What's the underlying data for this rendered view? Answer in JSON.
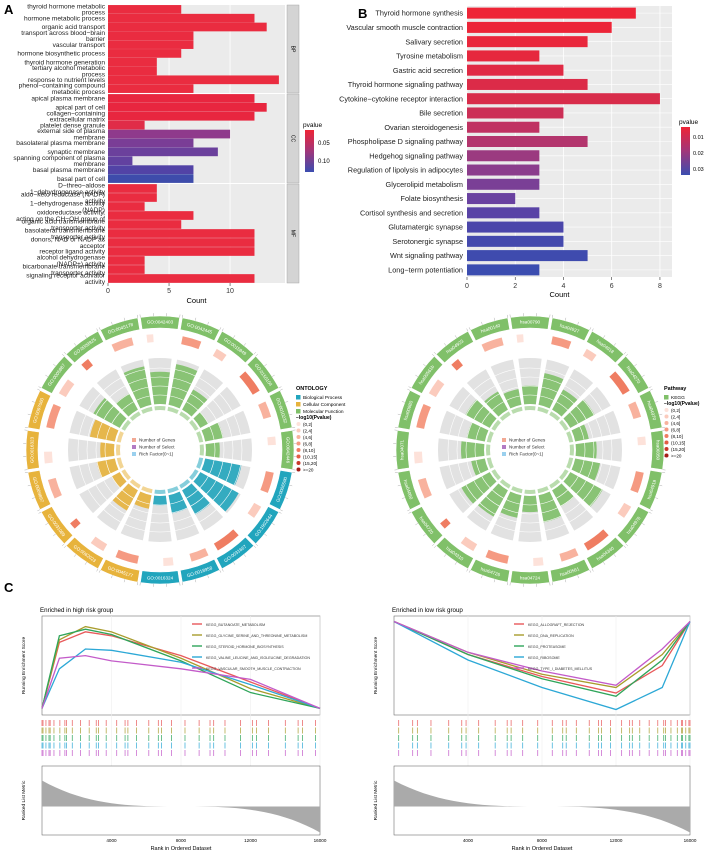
{
  "panel_letters": {
    "a": "A",
    "b": "B",
    "c": "C"
  },
  "chart_data": [
    {
      "id": "A",
      "type": "bar",
      "orientation": "horizontal",
      "xlabel": "Count",
      "xticks": [
        0,
        5,
        10
      ],
      "xlim": [
        0,
        14.5
      ],
      "legend": {
        "title": "pvalue",
        "ticks": [
          "0.05",
          "0.10"
        ],
        "placement": "right"
      },
      "facets": [
        {
          "label": "BP",
          "bars": [
            {
              "term": [
                "thyroid hormone metabolic",
                "process"
              ],
              "value": 6,
              "color": "#ea2c40"
            },
            {
              "term": [
                "hormone metabolic process"
              ],
              "value": 12,
              "color": "#ea2c40"
            },
            {
              "term": [
                "organic acid transport"
              ],
              "value": 13,
              "color": "#ea2c40"
            },
            {
              "term": [
                "transport across blood−brain",
                "barrier"
              ],
              "value": 7,
              "color": "#ea2c40"
            },
            {
              "term": [
                "vascular transport"
              ],
              "value": 7,
              "color": "#ea2c40"
            },
            {
              "term": [
                "hormone biosynthetic process"
              ],
              "value": 6,
              "color": "#ea2c40"
            },
            {
              "term": [
                "thyroid hormone generation"
              ],
              "value": 4,
              "color": "#ea2c40"
            },
            {
              "term": [
                "tertiary alcohol metabolic",
                "process"
              ],
              "value": 4,
              "color": "#ea2c40"
            },
            {
              "term": [
                "response to nutrient levels"
              ],
              "value": 14,
              "color": "#ea2c40"
            },
            {
              "term": [
                "phenol−containing compound",
                "metabolic process"
              ],
              "value": 7,
              "color": "#ea2c40"
            }
          ]
        },
        {
          "label": "CC",
          "bars": [
            {
              "term": [
                "apical plasma membrane"
              ],
              "value": 12,
              "color": "#e8263f"
            },
            {
              "term": [
                "apical part of cell"
              ],
              "value": 13,
              "color": "#e8263f"
            },
            {
              "term": [
                "collagen−containing",
                "extracellular matrix"
              ],
              "value": 12,
              "color": "#e8263f"
            },
            {
              "term": [
                "platelet dense granule"
              ],
              "value": 3,
              "color": "#e02c48"
            },
            {
              "term": [
                "external side of plasma",
                "membrane"
              ],
              "value": 10,
              "color": "#8f3a8c"
            },
            {
              "term": [
                "basolateral plasma membrane"
              ],
              "value": 7,
              "color": "#7a3d96"
            },
            {
              "term": [
                "synaptic membrane"
              ],
              "value": 9,
              "color": "#6b409c"
            },
            {
              "term": [
                "spanning component of plasma",
                "membrane"
              ],
              "value": 2,
              "color": "#6241a0"
            },
            {
              "term": [
                "basal plasma membrane"
              ],
              "value": 7,
              "color": "#5243a6"
            },
            {
              "term": [
                "basal part of cell"
              ],
              "value": 7,
              "color": "#3e4cab"
            }
          ]
        },
        {
          "label": "MF",
          "bars": [
            {
              "term": [
                "D−threo−aldose",
                "1−dehydrogenase activity"
              ],
              "value": 4,
              "color": "#ea2c40"
            },
            {
              "term": [
                "aldo−keto reductase (NADP)",
                "activity"
              ],
              "value": 4,
              "color": "#ea2c40"
            },
            {
              "term": [
                "1−dehydrogenase activity",
                "(NADP)"
              ],
              "value": 3,
              "color": "#ea2c40"
            },
            {
              "term": [
                "oxidoreductase activity,",
                "acting on the CH−OH group of"
              ],
              "value": 7,
              "color": "#ea2c40"
            },
            {
              "term": [
                "organic acid transmembrane",
                "transporter activity"
              ],
              "value": 6,
              "color": "#ea2c40"
            },
            {
              "term": [
                "basolateral transmembrane",
                "transporter activity"
              ],
              "value": 12,
              "color": "#ea2c40"
            },
            {
              "term": [
                "donors, NAD or NADP as",
                "acceptor"
              ],
              "value": 12,
              "color": "#ea2c40"
            },
            {
              "term": [
                "receptor ligand activity"
              ],
              "value": 12,
              "color": "#ea2c40"
            },
            {
              "term": [
                "alcohol dehydrogenase",
                "(NADP+) activity"
              ],
              "value": 3,
              "color": "#ea2c40"
            },
            {
              "term": [
                "bicarbonate transmembrane",
                "transporter activity"
              ],
              "value": 3,
              "color": "#ea2c40"
            },
            {
              "term": [
                "signaling receptor activator",
                "activity"
              ],
              "value": 12,
              "color": "#ea2c40"
            }
          ]
        }
      ]
    },
    {
      "id": "B",
      "type": "bar",
      "orientation": "horizontal",
      "xlabel": "Count",
      "xticks": [
        0,
        2,
        4,
        6,
        8
      ],
      "xlim": [
        0,
        8.5
      ],
      "legend": {
        "title": "pvalue",
        "ticks": [
          "0.01",
          "0.02",
          "0.03"
        ],
        "placement": "right"
      },
      "categories": [
        "Thyroid hormone synthesis",
        "Vascular smooth muscle contraction",
        "Salivary secretion",
        "Tyrosine metabolism",
        "Gastric acid secretion",
        "Thyroid hormone signaling pathway",
        "Cytokine−cytokine receptor interaction",
        "Bile secretion",
        "Ovarian steroidogenesis",
        "Phospholipase D signaling pathway",
        "Hedgehog signaling pathway",
        "Regulation of lipolysis in adipocytes",
        "Glycerolipid metabolism",
        "Folate biosynthesis",
        "Cortisol synthesis and secretion",
        "Glutamatergic synapse",
        "Serotonergic synapse",
        "Wnt signaling pathway",
        "Long−term potentiation"
      ],
      "values": [
        7,
        6,
        5,
        3,
        4,
        5,
        8,
        4,
        3,
        5,
        3,
        3,
        3,
        2,
        3,
        4,
        4,
        5,
        3
      ],
      "colors": [
        "#ee2436",
        "#ec2538",
        "#e9273c",
        "#e6283e",
        "#e02a44",
        "#dc2b48",
        "#d82c4a",
        "#cc2f56",
        "#c03262",
        "#b3356d",
        "#9b3a80",
        "#8b3d8c",
        "#7a3f96",
        "#6941a0",
        "#5943a6",
        "#4b46aa",
        "#4449ad",
        "#3f4bae",
        "#3b4db0"
      ]
    },
    {
      "id": "A-circos",
      "type": "table",
      "title": "ONTOLOGY",
      "legend": {
        "ontology": [
          "Biological Process",
          "Cellular Component",
          "Molecular Function"
        ],
        "value_title": "−log10(Pvalue)",
        "value_bins": [
          "(0,2]",
          "(2,4]",
          "(4,6]",
          "(6,8]",
          "(8,10]",
          "(10,15]",
          "(15,20]",
          ">=20"
        ],
        "rings": [
          "Number of Genes",
          "Number of Select",
          "Rich Factor(0~1)"
        ]
      },
      "sectors": [
        "GO:0042403",
        "GO:0042445",
        "GO:0015849",
        "GO:0150104",
        "GO:0010232",
        "GO:0042446",
        "GO:0006590",
        "GO:1902644",
        "GO:0031667",
        "GO:0018958",
        "GO:0016324",
        "GO:0045177",
        "GO:0062023",
        "GO:0031089",
        "GO:0009897",
        "GO:0016323",
        "GO:0097060",
        "GO:0005887",
        "GO:0009925",
        "GO:0045178"
      ]
    },
    {
      "id": "B-circos",
      "type": "table",
      "title": "Pathway",
      "legend": {
        "pathway": [
          "KEGG"
        ],
        "value_title": "−log10(Pvalue)",
        "value_bins": [
          "(0,2]",
          "(2,4]",
          "(4,6]",
          "(6,8]",
          "(8,10]",
          "(10,15]",
          "(15,20]",
          ">=20"
        ],
        "rings": [
          "Number of Genes",
          "Number of Select",
          "Rich Factor(0~1)"
        ]
      },
      "sectors": [
        "hsa00790",
        "hsa04927",
        "hsa04918",
        "hsa04270",
        "hsa04970",
        "hsa00350",
        "hsa04919",
        "hsa04976",
        "hsa04340",
        "hsa00561",
        "hsa04724",
        "hsa04726",
        "hsa04310",
        "hsa04720",
        "hsa04060",
        "hsa04071",
        "hsa00980",
        "hsa00561b",
        "hsa04923",
        "hsa00140"
      ]
    },
    {
      "id": "C-high",
      "type": "line",
      "title": "Enriched in high risk group",
      "ylabel": "Running Enrichment Score",
      "ylabel2": "Ranked List Metric",
      "xlabel": "Rank in Ordered Dataset",
      "xticks": [
        4000,
        8000,
        12000,
        16000
      ],
      "xlim": [
        0,
        16000
      ],
      "series": [
        {
          "name": "KEGG_BUTANOATE_METABOLISM",
          "color": "#e8595a",
          "x": [
            0,
            1000,
            2500,
            4000,
            8000,
            12000,
            16000
          ],
          "values": [
            0,
            0.5,
            0.58,
            0.55,
            0.4,
            0.2,
            0
          ]
        },
        {
          "name": "KEGG_GLYCINE_SERINE_AND_THREONINE_METABOLISM",
          "color": "#a99c2d",
          "x": [
            0,
            1000,
            2500,
            4000,
            8000,
            12000,
            16000
          ],
          "values": [
            0,
            0.52,
            0.62,
            0.58,
            0.38,
            0.15,
            0
          ]
        },
        {
          "name": "KEGG_STEROID_HORMONE_BIOSYNTHESIS",
          "color": "#2fa55a",
          "x": [
            0,
            1000,
            2500,
            4000,
            8000,
            12000,
            16000
          ],
          "values": [
            0,
            0.55,
            0.6,
            0.56,
            0.36,
            0.12,
            0
          ]
        },
        {
          "name": "KEGG_VALINE_LEUCINE_AND_ISOLEUCINE_DEGRADATION",
          "color": "#2ca8d6",
          "x": [
            0,
            1000,
            2500,
            4000,
            8000,
            12000,
            16000
          ],
          "values": [
            0,
            0.3,
            0.45,
            0.44,
            0.35,
            0.18,
            0
          ]
        },
        {
          "name": "KEGG_VASCULAR_SMOOTH_MUSCLE_CONTRACTION",
          "color": "#c35bc9",
          "x": [
            0,
            1000,
            2500,
            4000,
            8000,
            12000,
            16000
          ],
          "values": [
            0,
            0.38,
            0.4,
            0.36,
            0.3,
            0.22,
            0
          ]
        }
      ]
    },
    {
      "id": "C-low",
      "type": "line",
      "title": "Enriched in low risk group",
      "ylabel": "Running Enrichment Score",
      "ylabel2": "Ranked List Metric",
      "xlabel": "Rank in Ordered Dataset",
      "xticks": [
        4000,
        8000,
        12000,
        16000
      ],
      "xlim": [
        0,
        16000
      ],
      "series": [
        {
          "name": "KEGG_ALLOGRAFT_REJECTION",
          "color": "#e8595a",
          "x": [
            0,
            4000,
            8000,
            12000,
            14500,
            16000
          ],
          "values": [
            0,
            -0.3,
            -0.5,
            -0.65,
            -0.4,
            0
          ]
        },
        {
          "name": "KEGG_DNA_REPLICATION",
          "color": "#a99c2d",
          "x": [
            0,
            4000,
            8000,
            12000,
            14500,
            16000
          ],
          "values": [
            0,
            -0.28,
            -0.48,
            -0.6,
            -0.3,
            0
          ]
        },
        {
          "name": "KEGG_PROTEASOME",
          "color": "#2fa55a",
          "x": [
            0,
            4000,
            8000,
            12000,
            14500,
            16000
          ],
          "values": [
            0,
            -0.3,
            -0.52,
            -0.68,
            -0.35,
            0
          ]
        },
        {
          "name": "KEGG_RIBOSOME",
          "color": "#2ca8d6",
          "x": [
            0,
            4000,
            8000,
            12000,
            14500,
            16000
          ],
          "values": [
            0,
            -0.35,
            -0.6,
            -0.8,
            -0.6,
            0
          ]
        },
        {
          "name": "KEGG_TYPE_I_DIABETES_MELLITUS",
          "color": "#c35bc9",
          "x": [
            0,
            4000,
            8000,
            12000,
            14500,
            16000
          ],
          "values": [
            0,
            -0.28,
            -0.45,
            -0.58,
            -0.25,
            0
          ]
        }
      ]
    }
  ]
}
